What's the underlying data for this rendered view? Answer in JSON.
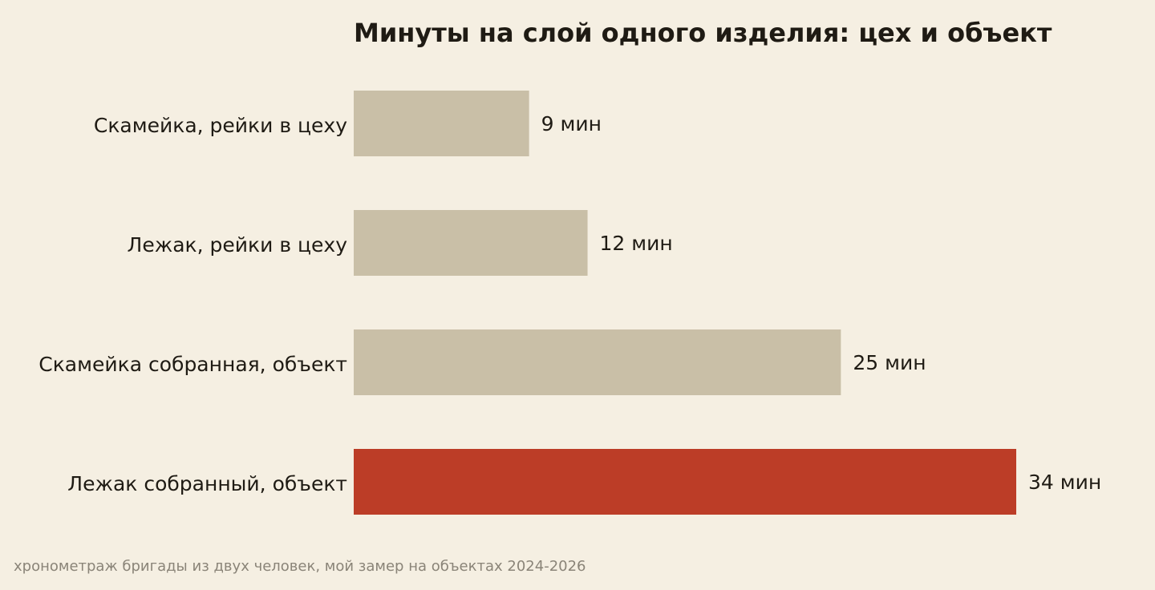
{
  "chart_data": {
    "type": "bar",
    "orientation": "horizontal",
    "title": "Минуты на слой одного изделия: цех и объект",
    "categories": [
      "Скамейка, рейки в цеху",
      "Лежак, рейки в цеху",
      "Скамейка собранная, объект",
      "Лежак собранный, объект"
    ],
    "values": [
      9,
      12,
      25,
      34
    ],
    "value_labels": [
      "9 мин",
      "12 мин",
      "25 мин",
      "34 мин"
    ],
    "xlim": [
      0,
      34
    ],
    "grid": false,
    "legend": "none",
    "colors": {
      "default": "#c9bfa7",
      "highlight": "#bc3d27"
    },
    "highlight_index": 3
  },
  "footnote": "хронометраж бригады из двух человек, мой замер на объектах 2024-2026"
}
